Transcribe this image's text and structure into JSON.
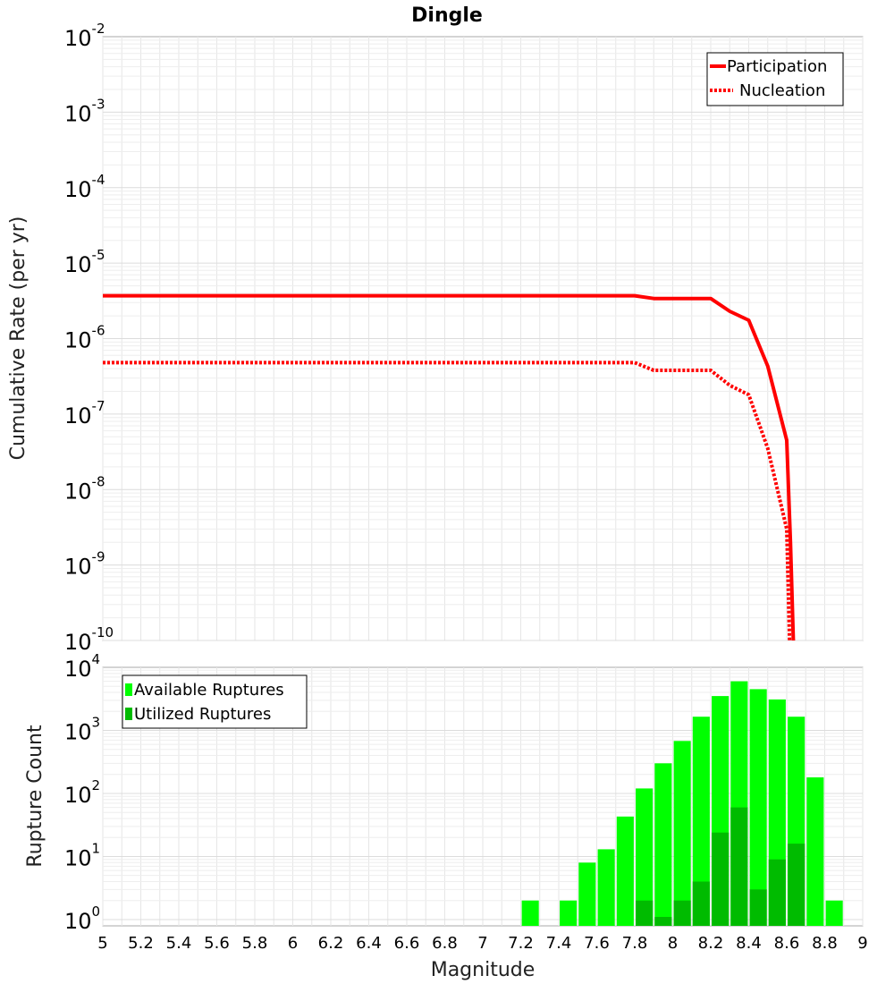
{
  "chart_data": [
    {
      "id": "rate",
      "type": "line",
      "title": "Dingle",
      "ylabel": "Cumulative Rate (per yr)",
      "xlabel": "",
      "scale_y": "log",
      "xlim": [
        5,
        9
      ],
      "ylim_exp": [
        -10,
        -2
      ],
      "ytick_exps": [
        -10,
        -9,
        -8,
        -7,
        -6,
        -5,
        -4,
        -3,
        -2
      ],
      "legend": {
        "position": "top-right"
      },
      "series": [
        {
          "name": "Participation",
          "color": "#ff0000",
          "style": "solid",
          "points": [
            [
              5.0,
              3.7e-06
            ],
            [
              7.8,
              3.7e-06
            ],
            [
              7.9,
              3.4e-06
            ],
            [
              8.2,
              3.4e-06
            ],
            [
              8.3,
              2.3e-06
            ],
            [
              8.4,
              1.75e-06
            ],
            [
              8.5,
              4.3e-07
            ],
            [
              8.6,
              4.5e-08
            ],
            [
              8.62,
              2e-09
            ],
            [
              8.635,
              1e-10
            ]
          ]
        },
        {
          "name": "Nucleation",
          "color": "#ff0000",
          "style": "dotted",
          "points": [
            [
              5.0,
              4.8e-07
            ],
            [
              7.8,
              4.8e-07
            ],
            [
              7.9,
              3.8e-07
            ],
            [
              8.2,
              3.8e-07
            ],
            [
              8.3,
              2.4e-07
            ],
            [
              8.4,
              1.8e-07
            ],
            [
              8.5,
              3.5e-08
            ],
            [
              8.6,
              3e-09
            ],
            [
              8.615,
              1e-10
            ]
          ]
        }
      ]
    },
    {
      "id": "count",
      "type": "bar",
      "ylabel": "Rupture Count",
      "xlabel": "Magnitude",
      "scale_y": "log",
      "xlim": [
        5,
        9
      ],
      "ylim_exp": [
        -0.1,
        4
      ],
      "ytick_exps": [
        0,
        1,
        2,
        3,
        4
      ],
      "xticks": [
        "5",
        "5.2",
        "5.4",
        "5.6",
        "5.8",
        "6",
        "6.2",
        "6.4",
        "6.6",
        "6.8",
        "7",
        "7.2",
        "7.4",
        "7.6",
        "7.8",
        "8",
        "8.2",
        "8.4",
        "8.6",
        "8.8",
        "9"
      ],
      "legend": {
        "position": "top-left"
      },
      "series": [
        {
          "name": "Available Ruptures",
          "color": "#00ff00",
          "x": [
            7.25,
            7.45,
            7.55,
            7.65,
            7.75,
            7.85,
            7.95,
            8.05,
            8.15,
            8.25,
            8.35,
            8.45,
            8.55,
            8.65,
            8.75,
            8.85
          ],
          "values": [
            2,
            2,
            8,
            13,
            43,
            120,
            300,
            680,
            1650,
            3500,
            6000,
            4500,
            3100,
            1650,
            180,
            2
          ]
        },
        {
          "name": "Utilized Ruptures",
          "color": "#00bb00",
          "x": [
            7.85,
            7.95,
            8.05,
            8.15,
            8.25,
            8.35,
            8.45,
            8.55,
            8.65
          ],
          "values": [
            2,
            1.1,
            2,
            4,
            24,
            60,
            3,
            9,
            16
          ]
        }
      ]
    }
  ]
}
